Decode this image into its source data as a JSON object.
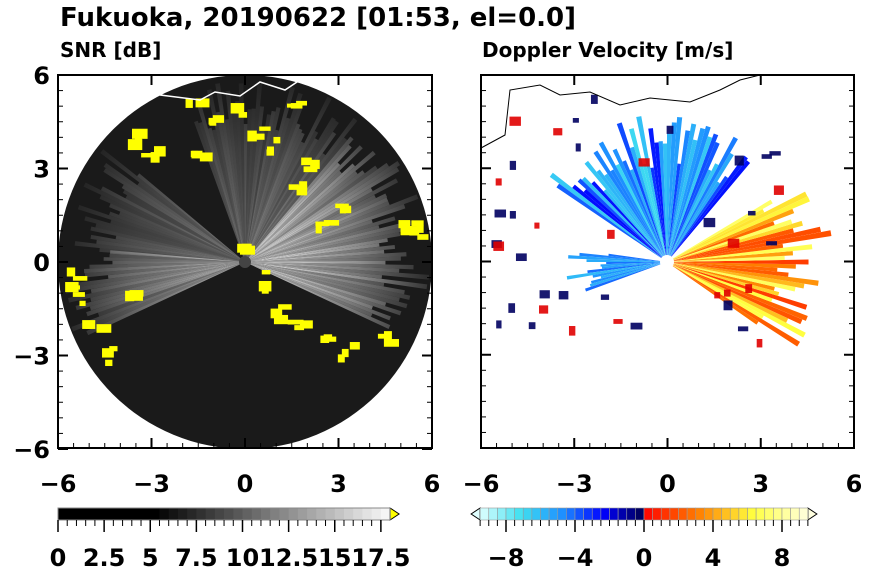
{
  "title": "Fukuoka, 20190622 [01:53, el=0.0]",
  "chart_data": [
    {
      "type": "heatmap",
      "subtype": "radar-ppi",
      "title": "SNR [dB]",
      "xlim": [
        -6,
        6
      ],
      "ylim": [
        -6,
        6
      ],
      "xticks": [
        "−6",
        "−3",
        "0",
        "3",
        "6"
      ],
      "yticks": [
        "6",
        "3",
        "0",
        "−3",
        "−6"
      ],
      "xtick_values": [
        -6,
        -3,
        0,
        3,
        6
      ],
      "ytick_values": [
        6,
        3,
        0,
        -3,
        -6
      ],
      "colorbar": {
        "min": 0,
        "max": 18,
        "step": 0.5,
        "extend": "max",
        "colors": [
          "#000000",
          "#ffffff"
        ],
        "over_color": "#ffff00",
        "labels": [
          "0",
          "2.5",
          "5",
          "7.5",
          "10",
          "12.5",
          "15",
          "17.5"
        ],
        "label_values": [
          0,
          2.5,
          5,
          7.5,
          10,
          12.5,
          15,
          17.5
        ]
      }
    },
    {
      "type": "heatmap",
      "subtype": "radar-ppi",
      "title": "Doppler Velocity [m/s]",
      "xlim": [
        -6,
        6
      ],
      "ylim": [
        -6,
        6
      ],
      "xticks": [
        "−6",
        "−3",
        "0",
        "3",
        "6"
      ],
      "yticks": [
        "6",
        "3",
        "0",
        "−3",
        "−6"
      ],
      "xtick_values": [
        -6,
        -3,
        0,
        3,
        6
      ],
      "ytick_values": [
        6,
        3,
        0,
        -3,
        -6
      ],
      "colorbar": {
        "min": -9.5,
        "max": 9.5,
        "step": 0.5,
        "extend": "both",
        "colors": [
          "#e0ffff",
          "#40e0f0",
          "#1e90ff",
          "#0000ff",
          "#000050",
          "#ff0000",
          "#ff8000",
          "#ffff40",
          "#ffffe0"
        ],
        "labels": [
          "−8",
          "−4",
          "0",
          "4",
          "8"
        ],
        "label_values": [
          -8,
          -4,
          0,
          4,
          8
        ]
      }
    }
  ]
}
